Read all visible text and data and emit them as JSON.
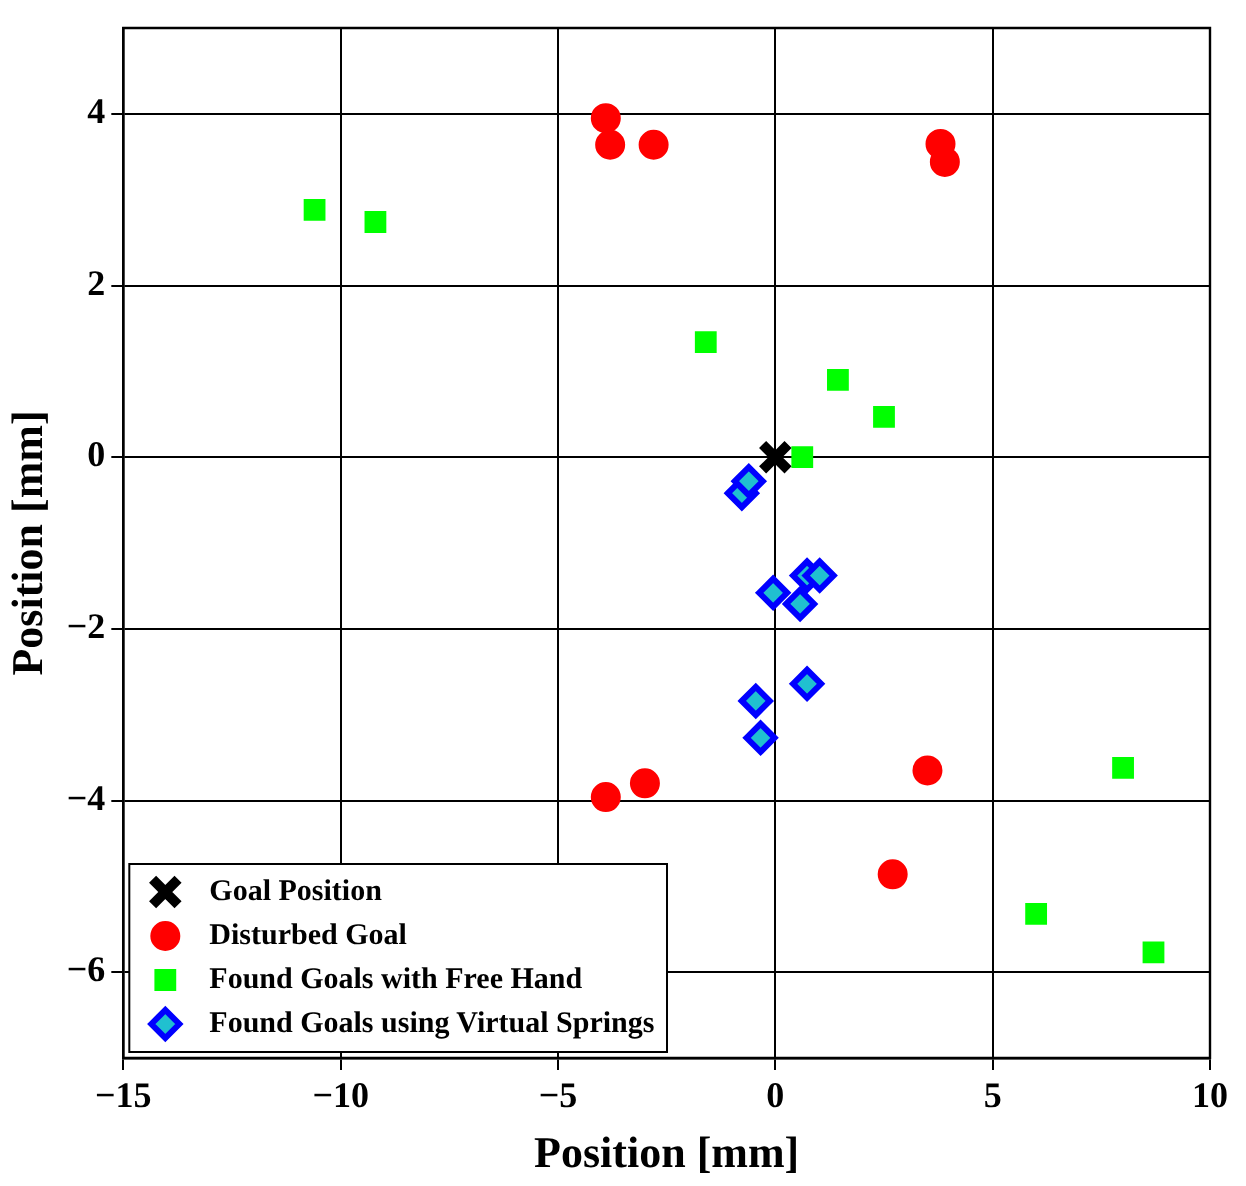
{
  "chart_data": {
    "type": "scatter",
    "xlabel": "Position [mm]",
    "ylabel": "Position [mm]",
    "xlim": [
      -15,
      10
    ],
    "ylim": [
      -7,
      5
    ],
    "xticks": [
      -15,
      -10,
      -5,
      0,
      5,
      10
    ],
    "yticks": [
      -6,
      -4,
      -2,
      0,
      2,
      4
    ],
    "grid": true,
    "legend": "bottom left",
    "series": [
      {
        "name": "Goal Position",
        "color": "#000000",
        "marker": "cross",
        "x": [
          0
        ],
        "values": [
          0
        ]
      },
      {
        "name": "Disturbed Goal",
        "color": "#ff0000",
        "marker": "circle",
        "x": [
          -3.9,
          -3.8,
          -2.8,
          3.8,
          3.9,
          -3.9,
          -3.0,
          3.5,
          2.7
        ],
        "values": [
          3.95,
          3.64,
          3.64,
          3.65,
          3.44,
          -3.96,
          -3.8,
          -3.65,
          -4.86
        ]
      },
      {
        "name": "Found Goals with Free Hand",
        "color": "#00ff00",
        "marker": "square",
        "x": [
          -10.6,
          -9.2,
          -1.6,
          1.44,
          2.5,
          0.62,
          8.0,
          6.0,
          8.7
        ],
        "values": [
          2.88,
          2.74,
          1.34,
          0.9,
          0.47,
          0,
          -3.62,
          -5.32,
          -5.77
        ]
      },
      {
        "name": "Found Goals using Virtual Springs",
        "color": "#0000ff",
        "marker": "diamond",
        "x": [
          -0.77,
          -0.61,
          -0.05,
          0.73,
          1.02,
          0.57,
          0.73,
          -0.45,
          -0.34
        ],
        "values": [
          -0.42,
          -0.28,
          -1.58,
          -1.38,
          -1.38,
          -1.71,
          -2.64,
          -2.84,
          -3.27
        ]
      }
    ]
  }
}
